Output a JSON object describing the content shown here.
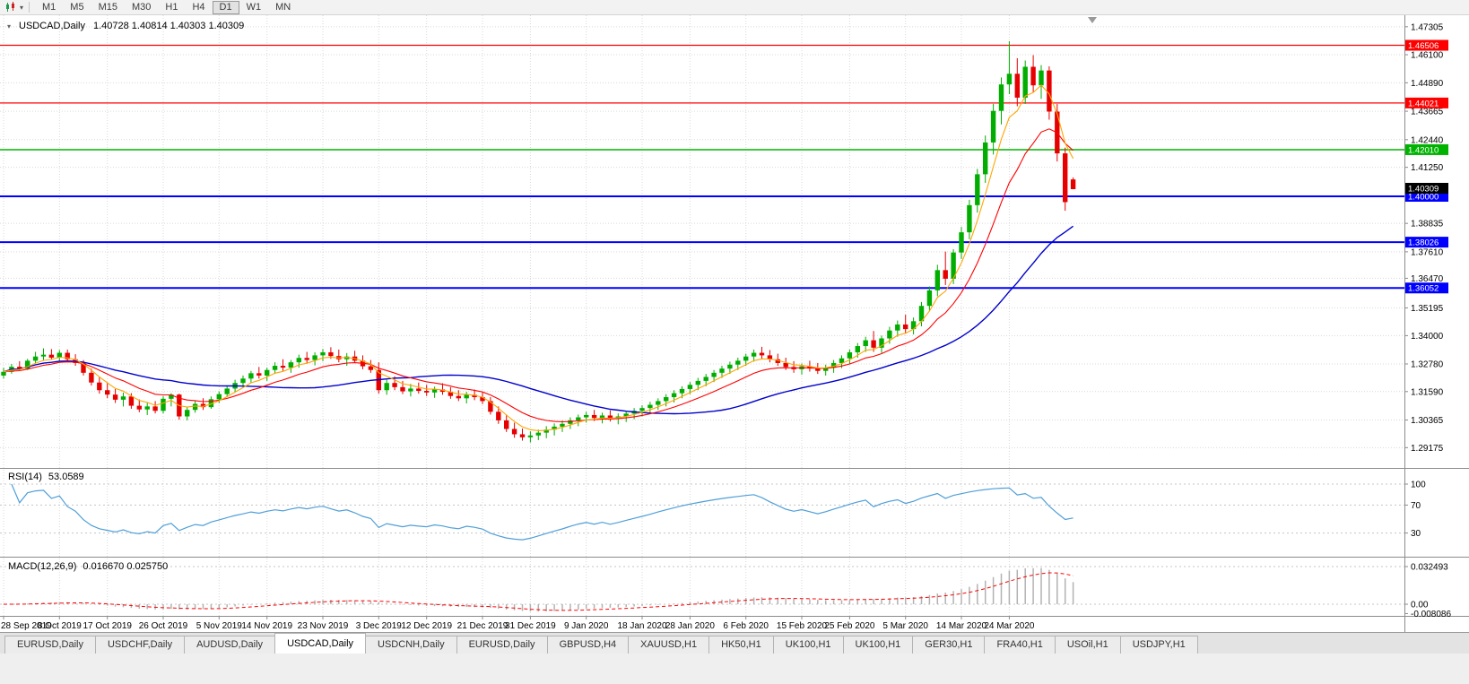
{
  "toolbar": {
    "timeframes": [
      "M1",
      "M5",
      "M15",
      "M30",
      "H1",
      "H4",
      "D1",
      "W1",
      "MN"
    ],
    "active_timeframe": "D1"
  },
  "icons": {
    "dropdown_caret": "▾",
    "collapse_caret": "▾"
  },
  "chart_header": {
    "symbol": "USDCAD,Daily",
    "ohlc": "1.40728 1.40814 1.40303 1.40309"
  },
  "rsi": {
    "name": "RSI(14)",
    "value": "53.0589",
    "color": "#4f9fd8"
  },
  "macd": {
    "name": "MACD(12,26,9)",
    "values": "0.016670 0.025750"
  },
  "tabs": {
    "items": [
      "EURUSD,Daily",
      "USDCHF,Daily",
      "AUDUSD,Daily",
      "USDCAD,Daily",
      "USDCNH,Daily",
      "EURUSD,Daily",
      "GBPUSD,H4",
      "XAUUSD,H1",
      "HK50,H1",
      "UK100,H1",
      "UK100,H1",
      "GER30,H1",
      "FRA40,H1",
      "USOil,H1",
      "USDJPY,H1"
    ],
    "active_index": 3
  },
  "chart_data": {
    "type": "candlestick",
    "symbol": "USDCAD",
    "timeframe": "Daily",
    "ohlc_format": [
      "open",
      "high",
      "low",
      "close"
    ],
    "ylim": [
      1.283,
      1.478
    ],
    "y_axis_ticks": [
      1.47305,
      1.461,
      1.4489,
      1.43665,
      1.4244,
      1.4125,
      1.38835,
      1.3761,
      1.3647,
      1.35195,
      1.34,
      1.3278,
      1.3159,
      1.30365,
      1.29175
    ],
    "levels": [
      {
        "value": 1.46506,
        "color": "#ff0000",
        "width": 1.2
      },
      {
        "value": 1.44021,
        "color": "#ff0000",
        "width": 1.2
      },
      {
        "value": 1.4201,
        "color": "#00b300",
        "width": 1.5
      },
      {
        "value": 1.4,
        "color": "#0000ff",
        "width": 2
      },
      {
        "value": 1.38026,
        "color": "#0000ff",
        "width": 2
      },
      {
        "value": 1.36052,
        "color": "#0000ff",
        "width": 2
      }
    ],
    "current_price": 1.40309,
    "rsi_levels": [
      100,
      70,
      30
    ],
    "macd_axis": [
      0.032493,
      0,
      -0.008086
    ],
    "date_labels": [
      "28 Sep 2019",
      "8 Oct 2019",
      "17 Oct 2019",
      "26 Oct 2019",
      "5 Nov 2019",
      "14 Nov 2019",
      "23 Nov 2019",
      "3 Dec 2019",
      "12 Dec 2019",
      "21 Dec 2019",
      "31 Dec 2019",
      "9 Jan 2020",
      "18 Jan 2020",
      "28 Jan 2020",
      "6 Feb 2020",
      "15 Feb 2020",
      "25 Feb 2020",
      "5 Mar 2020",
      "14 Mar 2020",
      "24 Mar 2020"
    ],
    "date_label_indices": [
      0,
      7,
      13,
      20,
      27,
      33,
      40,
      47,
      53,
      60,
      66,
      73,
      80,
      86,
      93,
      100,
      106,
      113,
      120,
      126
    ],
    "colors": {
      "bull": "#00ad00",
      "bear": "#e60000",
      "ma_fast": "#ffa500",
      "ma_mid": "#ff0000",
      "ma_slow": "#0000cc",
      "grid": "#d9d9d9",
      "rsi_line": "#4f9fd8",
      "macd_hist": "#b2b2b2",
      "macd_signal": "#ff0000"
    },
    "candles": [
      [
        1.3228,
        1.3262,
        1.3215,
        1.3244
      ],
      [
        1.3244,
        1.3278,
        1.3236,
        1.3266
      ],
      [
        1.3266,
        1.329,
        1.325,
        1.3258
      ],
      [
        1.3258,
        1.33,
        1.3252,
        1.3292
      ],
      [
        1.3292,
        1.333,
        1.328,
        1.331
      ],
      [
        1.331,
        1.3345,
        1.3295,
        1.3318
      ],
      [
        1.3318,
        1.3342,
        1.3298,
        1.3305
      ],
      [
        1.3305,
        1.3338,
        1.329,
        1.3326
      ],
      [
        1.3326,
        1.334,
        1.3288,
        1.3298
      ],
      [
        1.3298,
        1.332,
        1.327,
        1.3282
      ],
      [
        1.3282,
        1.3295,
        1.3228,
        1.324
      ],
      [
        1.324,
        1.3258,
        1.3185,
        1.3198
      ],
      [
        1.3198,
        1.322,
        1.315,
        1.3165
      ],
      [
        1.3165,
        1.3195,
        1.313,
        1.3146
      ],
      [
        1.3146,
        1.317,
        1.311,
        1.3124
      ],
      [
        1.3124,
        1.3155,
        1.3095,
        1.3138
      ],
      [
        1.3138,
        1.3152,
        1.3085,
        1.3098
      ],
      [
        1.3098,
        1.3125,
        1.307,
        1.3082
      ],
      [
        1.3082,
        1.311,
        1.3058,
        1.3095
      ],
      [
        1.3095,
        1.3118,
        1.3065,
        1.3076
      ],
      [
        1.3076,
        1.314,
        1.3065,
        1.3128
      ],
      [
        1.3128,
        1.3152,
        1.3095,
        1.3146
      ],
      [
        1.3146,
        1.315,
        1.3038,
        1.3052
      ],
      [
        1.3052,
        1.3092,
        1.3035,
        1.308
      ],
      [
        1.308,
        1.3118,
        1.3068,
        1.3106
      ],
      [
        1.3106,
        1.313,
        1.308,
        1.3092
      ],
      [
        1.3092,
        1.3138,
        1.3085,
        1.3126
      ],
      [
        1.3126,
        1.316,
        1.311,
        1.3148
      ],
      [
        1.3148,
        1.3185,
        1.3135,
        1.3172
      ],
      [
        1.3172,
        1.321,
        1.3155,
        1.3196
      ],
      [
        1.3196,
        1.3228,
        1.3178,
        1.3215
      ],
      [
        1.3215,
        1.3248,
        1.3195,
        1.3238
      ],
      [
        1.3238,
        1.3265,
        1.3215,
        1.3228
      ],
      [
        1.3228,
        1.3262,
        1.3205,
        1.3252
      ],
      [
        1.3252,
        1.3285,
        1.3235,
        1.327
      ],
      [
        1.327,
        1.3298,
        1.3248,
        1.3262
      ],
      [
        1.3262,
        1.3295,
        1.324,
        1.3285
      ],
      [
        1.3285,
        1.3318,
        1.3262,
        1.3304
      ],
      [
        1.3304,
        1.333,
        1.328,
        1.3295
      ],
      [
        1.3295,
        1.3328,
        1.3272,
        1.3315
      ],
      [
        1.3315,
        1.3342,
        1.329,
        1.3328
      ],
      [
        1.3328,
        1.335,
        1.33,
        1.3312
      ],
      [
        1.3312,
        1.334,
        1.3285,
        1.3298
      ],
      [
        1.3298,
        1.3325,
        1.327,
        1.331
      ],
      [
        1.331,
        1.3335,
        1.3282,
        1.3292
      ],
      [
        1.3292,
        1.3315,
        1.3255,
        1.3268
      ],
      [
        1.3268,
        1.3295,
        1.324,
        1.3252
      ],
      [
        1.3252,
        1.3285,
        1.315,
        1.3165
      ],
      [
        1.3165,
        1.321,
        1.3145,
        1.3196
      ],
      [
        1.3196,
        1.3225,
        1.3165,
        1.3178
      ],
      [
        1.3178,
        1.3205,
        1.3148,
        1.316
      ],
      [
        1.316,
        1.3192,
        1.3138,
        1.3172
      ],
      [
        1.3172,
        1.3198,
        1.315,
        1.3162
      ],
      [
        1.3162,
        1.3188,
        1.314,
        1.3155
      ],
      [
        1.3155,
        1.318,
        1.3132,
        1.3168
      ],
      [
        1.3168,
        1.3195,
        1.3145,
        1.3158
      ],
      [
        1.3158,
        1.3178,
        1.3128,
        1.314
      ],
      [
        1.314,
        1.3165,
        1.3118,
        1.313
      ],
      [
        1.313,
        1.3158,
        1.3108,
        1.3145
      ],
      [
        1.3145,
        1.3168,
        1.3122,
        1.3135
      ],
      [
        1.3135,
        1.3155,
        1.3105,
        1.3118
      ],
      [
        1.3118,
        1.3135,
        1.306,
        1.3072
      ],
      [
        1.3072,
        1.3095,
        1.302,
        1.3035
      ],
      [
        1.3035,
        1.306,
        1.2985,
        1.2998
      ],
      [
        1.2998,
        1.3025,
        1.296,
        1.2975
      ],
      [
        1.2975,
        1.3,
        1.2948,
        1.2962
      ],
      [
        1.2962,
        1.2988,
        1.294,
        1.297
      ],
      [
        1.297,
        1.2995,
        1.295,
        1.2982
      ],
      [
        1.2982,
        1.301,
        1.2958,
        1.2995
      ],
      [
        1.2995,
        1.3022,
        1.297,
        1.3008
      ],
      [
        1.3008,
        1.3035,
        1.2985,
        1.302
      ],
      [
        1.302,
        1.3048,
        1.2998,
        1.3035
      ],
      [
        1.3035,
        1.306,
        1.301,
        1.3048
      ],
      [
        1.3048,
        1.3072,
        1.3025,
        1.3058
      ],
      [
        1.3058,
        1.308,
        1.3032,
        1.3045
      ],
      [
        1.3045,
        1.3068,
        1.3022,
        1.3056
      ],
      [
        1.3056,
        1.3078,
        1.303,
        1.3042
      ],
      [
        1.3042,
        1.3065,
        1.3018,
        1.3052
      ],
      [
        1.3052,
        1.3075,
        1.3028,
        1.3064
      ],
      [
        1.3064,
        1.3088,
        1.304,
        1.3076
      ],
      [
        1.3076,
        1.31,
        1.3052,
        1.3088
      ],
      [
        1.3088,
        1.3115,
        1.3065,
        1.3102
      ],
      [
        1.3102,
        1.313,
        1.308,
        1.3118
      ],
      [
        1.3118,
        1.3148,
        1.3095,
        1.3135
      ],
      [
        1.3135,
        1.3165,
        1.3112,
        1.3152
      ],
      [
        1.3152,
        1.3182,
        1.313,
        1.317
      ],
      [
        1.317,
        1.32,
        1.3148,
        1.3188
      ],
      [
        1.3188,
        1.3218,
        1.3165,
        1.3205
      ],
      [
        1.3205,
        1.3235,
        1.3182,
        1.3222
      ],
      [
        1.3222,
        1.3252,
        1.32,
        1.324
      ],
      [
        1.324,
        1.327,
        1.3218,
        1.3258
      ],
      [
        1.3258,
        1.3288,
        1.3235,
        1.3275
      ],
      [
        1.3275,
        1.3305,
        1.3252,
        1.3292
      ],
      [
        1.3292,
        1.3322,
        1.327,
        1.331
      ],
      [
        1.331,
        1.334,
        1.3288,
        1.3326
      ],
      [
        1.3326,
        1.3352,
        1.33,
        1.3315
      ],
      [
        1.3315,
        1.3338,
        1.3285,
        1.3298
      ],
      [
        1.3298,
        1.3322,
        1.327,
        1.3282
      ],
      [
        1.3282,
        1.3305,
        1.3252,
        1.3265
      ],
      [
        1.3265,
        1.329,
        1.324,
        1.3255
      ],
      [
        1.3255,
        1.328,
        1.3232,
        1.3268
      ],
      [
        1.3268,
        1.3292,
        1.3245,
        1.3258
      ],
      [
        1.3258,
        1.3282,
        1.3235,
        1.3248
      ],
      [
        1.3248,
        1.3275,
        1.3228,
        1.3262
      ],
      [
        1.3262,
        1.3295,
        1.324,
        1.3282
      ],
      [
        1.3282,
        1.3315,
        1.326,
        1.3302
      ],
      [
        1.3302,
        1.334,
        1.328,
        1.3328
      ],
      [
        1.3328,
        1.3368,
        1.3305,
        1.3355
      ],
      [
        1.3355,
        1.3395,
        1.333,
        1.338
      ],
      [
        1.338,
        1.342,
        1.333,
        1.3348
      ],
      [
        1.3348,
        1.34,
        1.3325,
        1.3388
      ],
      [
        1.3388,
        1.3438,
        1.3365,
        1.3422
      ],
      [
        1.3422,
        1.3465,
        1.3395,
        1.3448
      ],
      [
        1.3448,
        1.349,
        1.3408,
        1.3428
      ],
      [
        1.3428,
        1.3478,
        1.3405,
        1.3462
      ],
      [
        1.3462,
        1.3545,
        1.344,
        1.3528
      ],
      [
        1.3528,
        1.3612,
        1.3505,
        1.3595
      ],
      [
        1.3595,
        1.3705,
        1.357,
        1.3682
      ],
      [
        1.3682,
        1.3762,
        1.3618,
        1.3645
      ],
      [
        1.3645,
        1.3772,
        1.3622,
        1.3758
      ],
      [
        1.3758,
        1.3868,
        1.373,
        1.3845
      ],
      [
        1.3845,
        1.3985,
        1.3815,
        1.3962
      ],
      [
        1.3962,
        1.4118,
        1.393,
        1.4095
      ],
      [
        1.4095,
        1.4262,
        1.4058,
        1.4232
      ],
      [
        1.4232,
        1.4398,
        1.418,
        1.4368
      ],
      [
        1.4368,
        1.4512,
        1.431,
        1.4482
      ],
      [
        1.4482,
        1.4668,
        1.444,
        1.4528
      ],
      [
        1.4528,
        1.4595,
        1.4388,
        1.4425
      ],
      [
        1.4425,
        1.4585,
        1.4398,
        1.4558
      ],
      [
        1.4558,
        1.4608,
        1.4448,
        1.4478
      ],
      [
        1.4478,
        1.4565,
        1.442,
        1.4542
      ],
      [
        1.4542,
        1.456,
        1.433,
        1.4365
      ],
      [
        1.4365,
        1.4398,
        1.415,
        1.4185
      ],
      [
        1.4185,
        1.421,
        1.3938,
        1.3975
      ],
      [
        1.40728,
        1.40814,
        1.40303,
        1.40309
      ]
    ]
  }
}
